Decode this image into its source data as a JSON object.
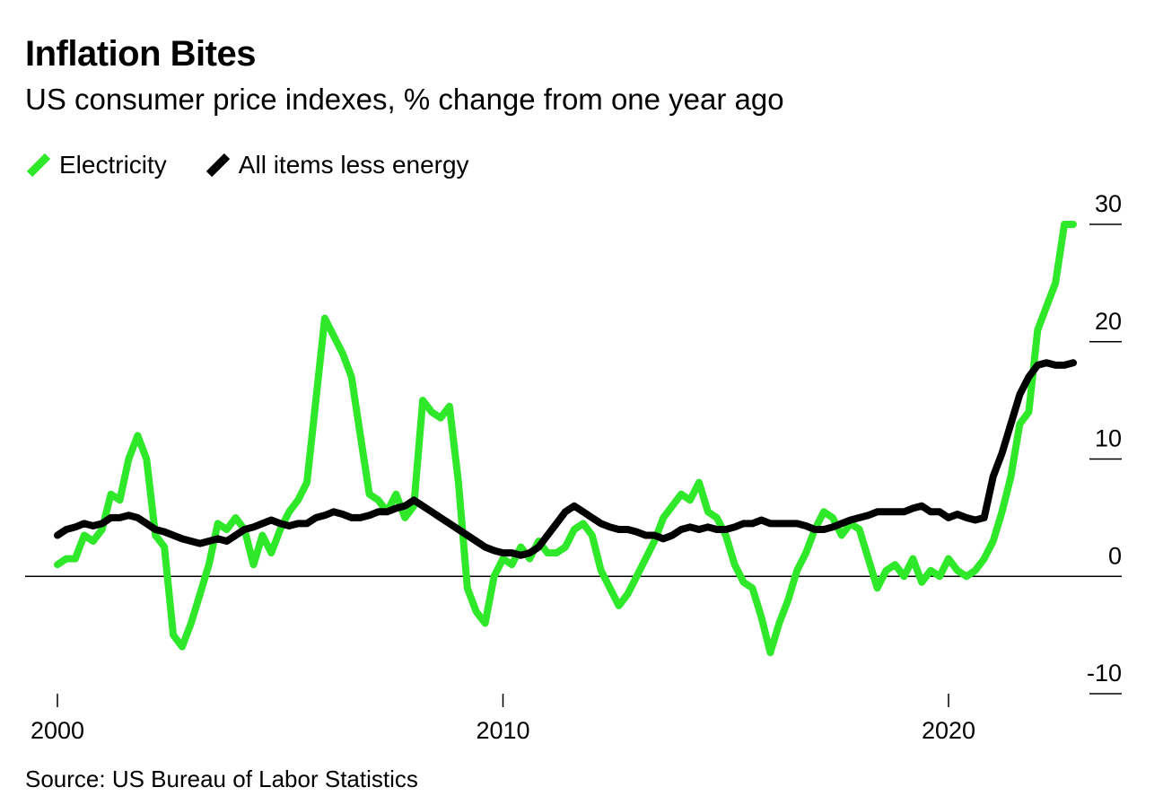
{
  "header": {
    "title": "Inflation Bites",
    "subtitle": "US consumer price indexes, % change from one year ago"
  },
  "footer": {
    "source": "Source: US Bureau of Labor Statistics"
  },
  "colors": {
    "electricity": "#2fe82a",
    "core": "#000000"
  },
  "chart_data": {
    "type": "line",
    "title": "Inflation Bites",
    "subtitle": "US consumer price indexes, % change from one year ago",
    "xlabel": "",
    "ylabel": "",
    "xlim": [
      1999.8,
      2023.0
    ],
    "ylim": [
      -10,
      30
    ],
    "yticks": [
      30,
      20,
      10,
      0,
      -10
    ],
    "xticks": [
      2000,
      2010,
      2020
    ],
    "xtick_labels": [
      "2000",
      "2010",
      "2020"
    ],
    "legend": "top-left",
    "series": [
      {
        "name": "Electricity",
        "color": "#2fe82a",
        "x": [
          2000.0,
          2000.2,
          2000.4,
          2000.6,
          2000.8,
          2001.0,
          2001.2,
          2001.4,
          2001.6,
          2001.8,
          2002.0,
          2002.2,
          2002.4,
          2002.6,
          2002.8,
          2003.0,
          2003.2,
          2003.4,
          2003.6,
          2003.8,
          2004.0,
          2004.2,
          2004.4,
          2004.6,
          2004.8,
          2005.0,
          2005.2,
          2005.4,
          2005.6,
          2005.8,
          2006.0,
          2006.2,
          2006.4,
          2006.6,
          2006.8,
          2007.0,
          2007.2,
          2007.4,
          2007.6,
          2007.8,
          2008.0,
          2008.2,
          2008.4,
          2008.6,
          2008.8,
          2009.0,
          2009.2,
          2009.4,
          2009.6,
          2009.8,
          2010.0,
          2010.2,
          2010.4,
          2010.6,
          2010.8,
          2011.0,
          2011.2,
          2011.4,
          2011.6,
          2011.8,
          2012.0,
          2012.2,
          2012.4,
          2012.6,
          2012.8,
          2013.0,
          2013.2,
          2013.4,
          2013.6,
          2013.8,
          2014.0,
          2014.2,
          2014.4,
          2014.6,
          2014.8,
          2015.0,
          2015.2,
          2015.4,
          2015.6,
          2015.8,
          2016.0,
          2016.2,
          2016.4,
          2016.6,
          2016.8,
          2017.0,
          2017.2,
          2017.4,
          2017.6,
          2017.8,
          2018.0,
          2018.2,
          2018.4,
          2018.6,
          2018.8,
          2019.0,
          2019.2,
          2019.4,
          2019.6,
          2019.8,
          2020.0,
          2020.2,
          2020.4,
          2020.6,
          2020.8,
          2021.0,
          2021.2,
          2021.4,
          2021.6,
          2021.8,
          2022.0,
          2022.2,
          2022.4,
          2022.6,
          2022.8
        ],
        "values": [
          1.0,
          1.5,
          1.5,
          3.5,
          3.0,
          4.0,
          7.0,
          6.5,
          10.0,
          12.0,
          10.0,
          3.5,
          2.5,
          -5.0,
          -6.0,
          -4.0,
          -1.5,
          1.0,
          4.5,
          4.0,
          5.0,
          4.0,
          1.0,
          3.5,
          2.0,
          4.0,
          5.5,
          6.5,
          8.0,
          15.0,
          22.0,
          20.5,
          19.0,
          17.0,
          12.0,
          7.0,
          6.5,
          5.5,
          7.0,
          5.0,
          6.0,
          15.0,
          14.0,
          13.5,
          14.5,
          8.0,
          -1.0,
          -3.0,
          -4.0,
          0.0,
          1.5,
          1.0,
          2.5,
          1.5,
          3.0,
          2.0,
          2.0,
          2.5,
          4.0,
          4.5,
          3.5,
          0.5,
          -1.0,
          -2.5,
          -1.5,
          0.0,
          1.5,
          3.0,
          5.0,
          6.0,
          7.0,
          6.5,
          8.0,
          5.5,
          5.0,
          3.5,
          1.0,
          -0.5,
          -1.0,
          -3.5,
          -6.5,
          -4.0,
          -2.0,
          0.5,
          2.0,
          4.0,
          5.5,
          5.0,
          3.5,
          4.5,
          4.0,
          1.5,
          -1.0,
          0.5,
          1.0,
          0.0,
          1.5,
          -0.5,
          0.5,
          0.0,
          1.5,
          0.5,
          0.0,
          0.5,
          1.5,
          3.0,
          5.5,
          8.5,
          13.0,
          14.0,
          21.0,
          23.0,
          25.0,
          30.0,
          30.0
        ]
      },
      {
        "name": "All items less energy",
        "color": "#000000",
        "x": [
          2000.0,
          2000.2,
          2000.4,
          2000.6,
          2000.8,
          2001.0,
          2001.2,
          2001.4,
          2001.6,
          2001.8,
          2002.0,
          2002.2,
          2002.4,
          2002.6,
          2002.8,
          2003.0,
          2003.2,
          2003.4,
          2003.6,
          2003.8,
          2004.0,
          2004.2,
          2004.4,
          2004.6,
          2004.8,
          2005.0,
          2005.2,
          2005.4,
          2005.6,
          2005.8,
          2006.0,
          2006.2,
          2006.4,
          2006.6,
          2006.8,
          2007.0,
          2007.2,
          2007.4,
          2007.6,
          2007.8,
          2008.0,
          2008.2,
          2008.4,
          2008.6,
          2008.8,
          2009.0,
          2009.2,
          2009.4,
          2009.6,
          2009.8,
          2010.0,
          2010.2,
          2010.4,
          2010.6,
          2010.8,
          2011.0,
          2011.2,
          2011.4,
          2011.6,
          2011.8,
          2012.0,
          2012.2,
          2012.4,
          2012.6,
          2012.8,
          2013.0,
          2013.2,
          2013.4,
          2013.6,
          2013.8,
          2014.0,
          2014.2,
          2014.4,
          2014.6,
          2014.8,
          2015.0,
          2015.2,
          2015.4,
          2015.6,
          2015.8,
          2016.0,
          2016.2,
          2016.4,
          2016.6,
          2016.8,
          2017.0,
          2017.2,
          2017.4,
          2017.6,
          2017.8,
          2018.0,
          2018.2,
          2018.4,
          2018.6,
          2018.8,
          2019.0,
          2019.2,
          2019.4,
          2019.6,
          2019.8,
          2020.0,
          2020.2,
          2020.4,
          2020.6,
          2020.8,
          2021.0,
          2021.2,
          2021.4,
          2021.6,
          2021.8,
          2022.0,
          2022.2,
          2022.4,
          2022.6,
          2022.8
        ],
        "values": [
          3.5,
          4.0,
          4.2,
          4.5,
          4.3,
          4.5,
          5.0,
          5.0,
          5.2,
          5.0,
          4.5,
          4.0,
          3.8,
          3.5,
          3.2,
          3.0,
          2.8,
          3.0,
          3.2,
          3.0,
          3.5,
          4.0,
          4.2,
          4.5,
          4.8,
          4.5,
          4.3,
          4.5,
          4.5,
          5.0,
          5.2,
          5.5,
          5.3,
          5.0,
          5.0,
          5.2,
          5.5,
          5.5,
          5.8,
          6.0,
          6.5,
          6.0,
          5.5,
          5.0,
          4.5,
          4.0,
          3.5,
          3.0,
          2.5,
          2.2,
          2.0,
          2.0,
          1.8,
          2.0,
          2.5,
          3.5,
          4.5,
          5.5,
          6.0,
          5.5,
          5.0,
          4.5,
          4.2,
          4.0,
          4.0,
          3.8,
          3.5,
          3.5,
          3.2,
          3.5,
          4.0,
          4.2,
          4.0,
          4.2,
          4.0,
          4.0,
          4.2,
          4.5,
          4.5,
          4.8,
          4.5,
          4.5,
          4.5,
          4.5,
          4.3,
          4.0,
          4.0,
          4.2,
          4.5,
          4.8,
          5.0,
          5.2,
          5.5,
          5.5,
          5.5,
          5.5,
          5.8,
          6.0,
          5.5,
          5.5,
          5.0,
          5.3,
          5.0,
          4.8,
          5.0,
          8.5,
          10.5,
          13.0,
          15.5,
          17.0,
          18.0,
          18.2,
          18.0,
          18.0,
          18.2
        ]
      }
    ]
  }
}
